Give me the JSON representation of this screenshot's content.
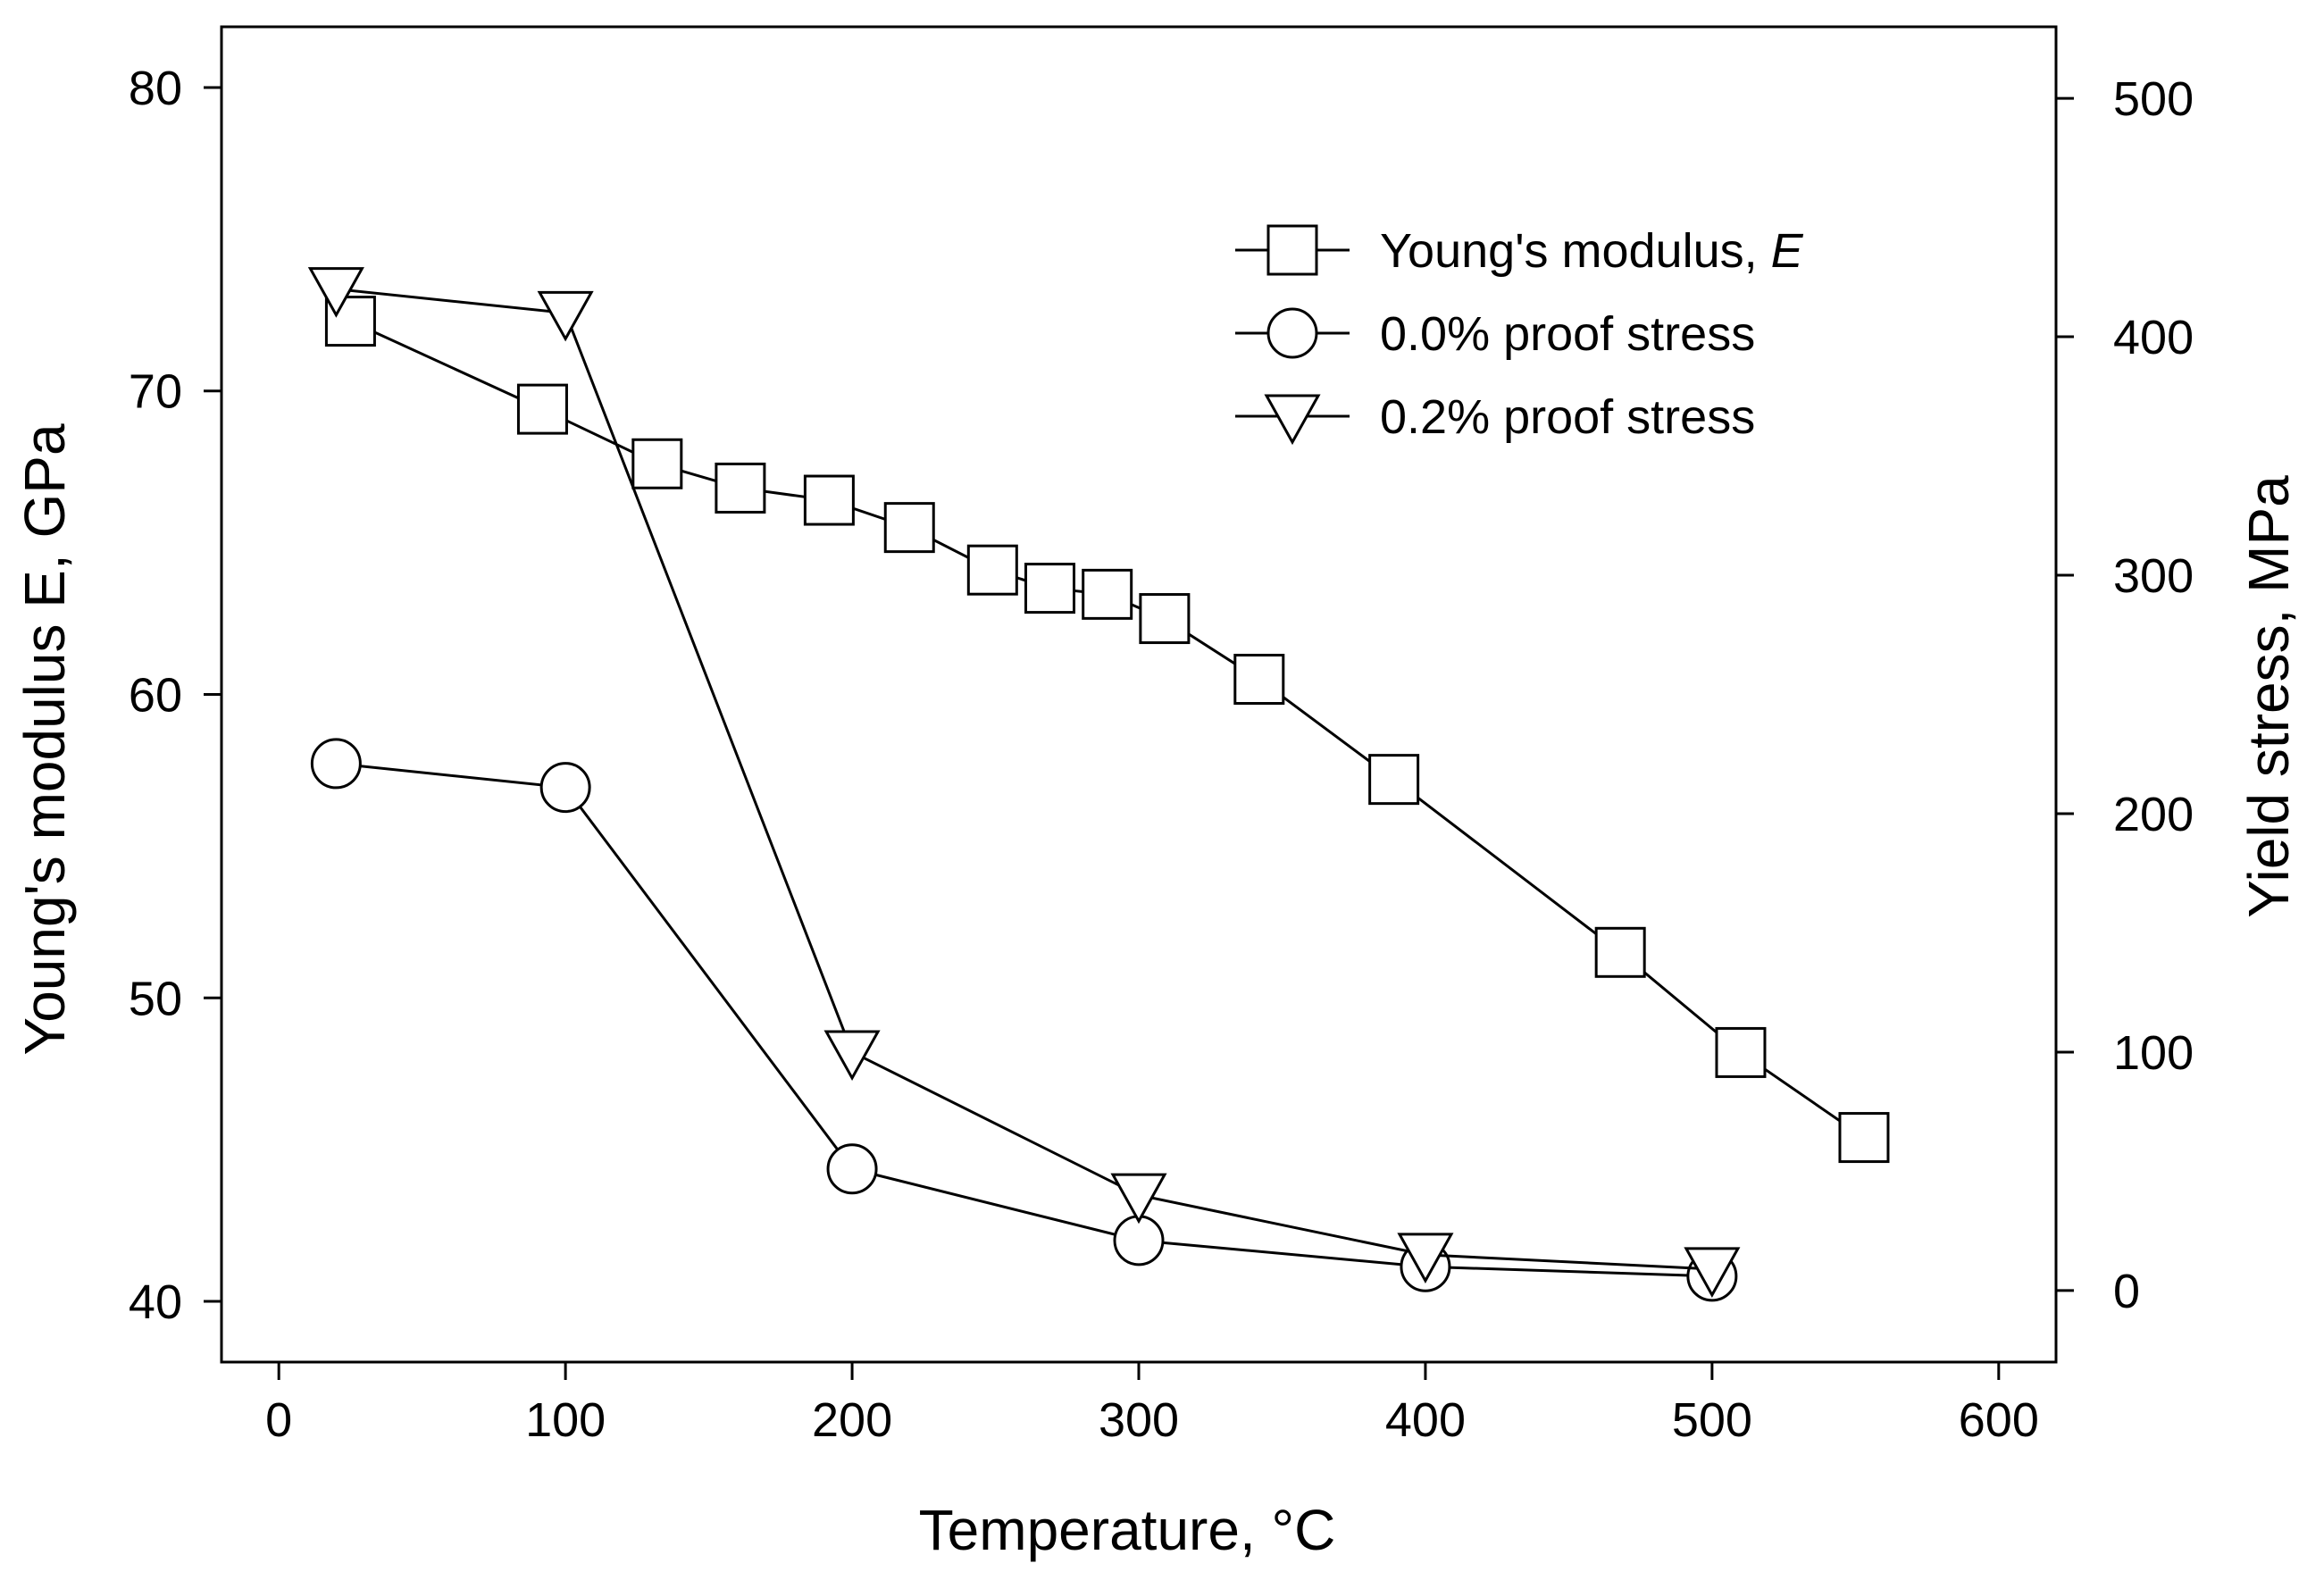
{
  "chart_data": {
    "type": "line",
    "title": "",
    "xlabel": "Temperature, °C",
    "ylabel": "Young's modulus E, GPa",
    "y2label": "Yield stress, MPa",
    "xlim": [
      -20,
      620
    ],
    "ylim": [
      38,
      82
    ],
    "y2lim": [
      -30,
      530
    ],
    "xticks": [
      0,
      100,
      200,
      300,
      400,
      500,
      600
    ],
    "yticks": [
      40,
      50,
      60,
      70,
      80
    ],
    "y2ticks": [
      0,
      100,
      200,
      300,
      400,
      500
    ],
    "grid": false,
    "legend_position": "top-right",
    "series": [
      {
        "name": "Young's modulus, ",
        "name_italic": "E",
        "marker": "square",
        "axis": "left",
        "x": [
          25,
          92,
          132,
          161,
          192,
          220,
          249,
          269,
          289,
          309,
          342,
          389,
          468,
          510,
          553
        ],
        "y": [
          72.3,
          69.4,
          67.6,
          66.8,
          66.4,
          65.5,
          64.1,
          63.5,
          63.3,
          62.5,
          60.5,
          57.2,
          51.5,
          48.2,
          45.4
        ]
      },
      {
        "name": "0.0% proof stress",
        "marker": "circle",
        "axis": "right",
        "x": [
          20,
          100,
          200,
          300,
          400,
          500
        ],
        "y": [
          221,
          211,
          51,
          21,
          10,
          6
        ]
      },
      {
        "name": "0.2% proof stress",
        "marker": "triangle-down",
        "axis": "right",
        "x": [
          20,
          100,
          200,
          300,
          400,
          500
        ],
        "y": [
          420,
          410,
          100,
          40,
          15,
          9
        ]
      }
    ]
  }
}
